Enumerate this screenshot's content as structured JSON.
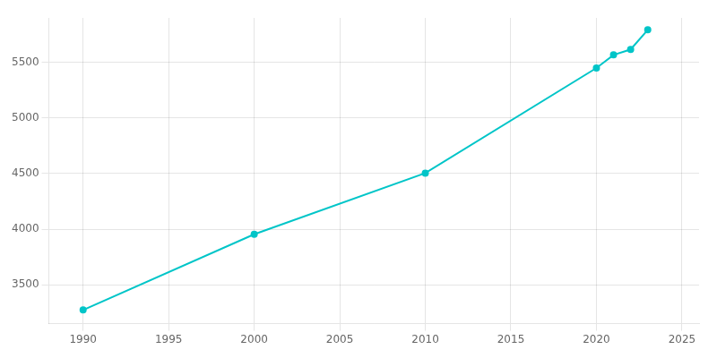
{
  "chart_data": {
    "type": "line",
    "x": [
      1990,
      2000,
      2010,
      2020,
      2021,
      2022,
      2023
    ],
    "values": [
      3273,
      3954,
      4504,
      5449,
      5567,
      5616,
      5793
    ],
    "color": "#00c5c8",
    "marker": "o",
    "xlim": [
      1988,
      2026
    ],
    "ylim": [
      3150,
      5900
    ],
    "xticks": [
      1990,
      1995,
      2000,
      2005,
      2010,
      2015,
      2020,
      2025
    ],
    "yticks": [
      3500,
      4000,
      4500,
      5000,
      5500
    ],
    "grid": true
  }
}
